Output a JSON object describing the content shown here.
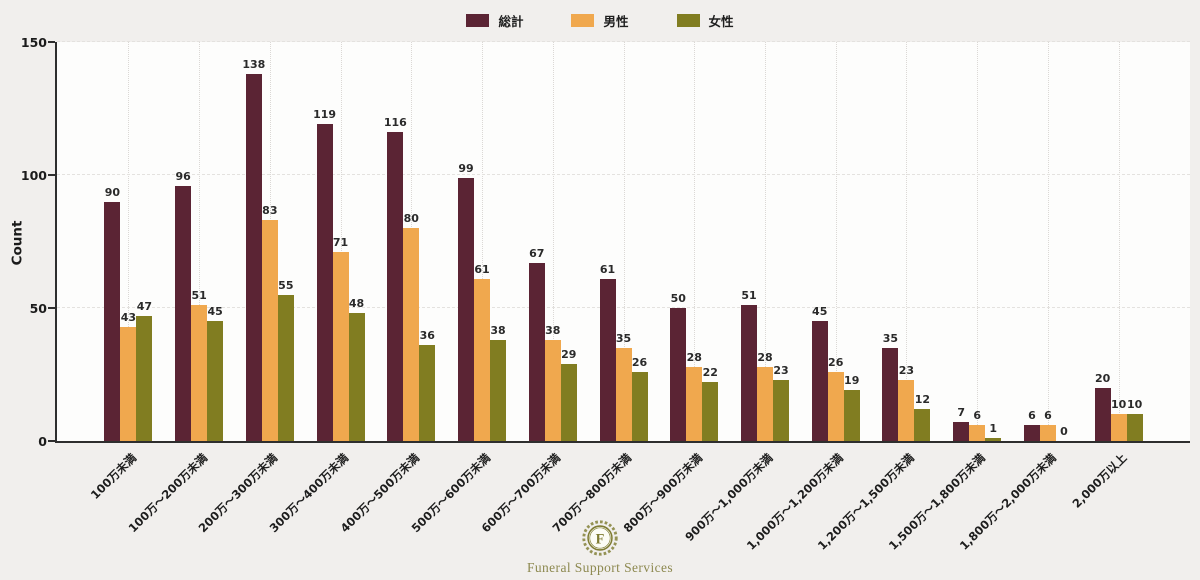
{
  "chart_data": {
    "type": "bar",
    "title": "",
    "xlabel": "",
    "ylabel": "Count",
    "ylim": [
      0,
      150
    ],
    "yticks": [
      0,
      50,
      100,
      150
    ],
    "grid": {
      "horizontal": "dashed",
      "vertical": "dotted-at-category-centers"
    },
    "legend_position": "top-center",
    "value_labels": true,
    "categories": [
      "100万未満",
      "100万〜200万未満",
      "200万〜300万未満",
      "300万〜400万未満",
      "400万〜500万未満",
      "500万〜600万未満",
      "600万〜700万未満",
      "700万〜800万未満",
      "800万〜900万未満",
      "900万〜1,000万未満",
      "1,000万〜1,200万未満",
      "1,200万〜1,500万未満",
      "1,500万〜1,800万未満",
      "1,800万〜2,000万未満",
      "2,000万以上"
    ],
    "series": [
      {
        "name": "総計",
        "color": "#5b2434",
        "values": [
          90,
          96,
          138,
          119,
          116,
          99,
          67,
          61,
          50,
          51,
          45,
          35,
          7,
          6,
          20
        ]
      },
      {
        "name": "男性",
        "color": "#f0a84e",
        "values": [
          43,
          51,
          83,
          71,
          80,
          61,
          38,
          35,
          28,
          28,
          26,
          23,
          6,
          6,
          10
        ]
      },
      {
        "name": "女性",
        "color": "#817d21",
        "values": [
          47,
          45,
          55,
          48,
          36,
          38,
          29,
          26,
          22,
          23,
          19,
          12,
          1,
          0,
          10
        ]
      }
    ]
  },
  "footer": {
    "brand": "Funeral Support Services",
    "logo_letter": "F",
    "brand_color": "#8d8950",
    "logo_color": "#7f7c33"
  }
}
